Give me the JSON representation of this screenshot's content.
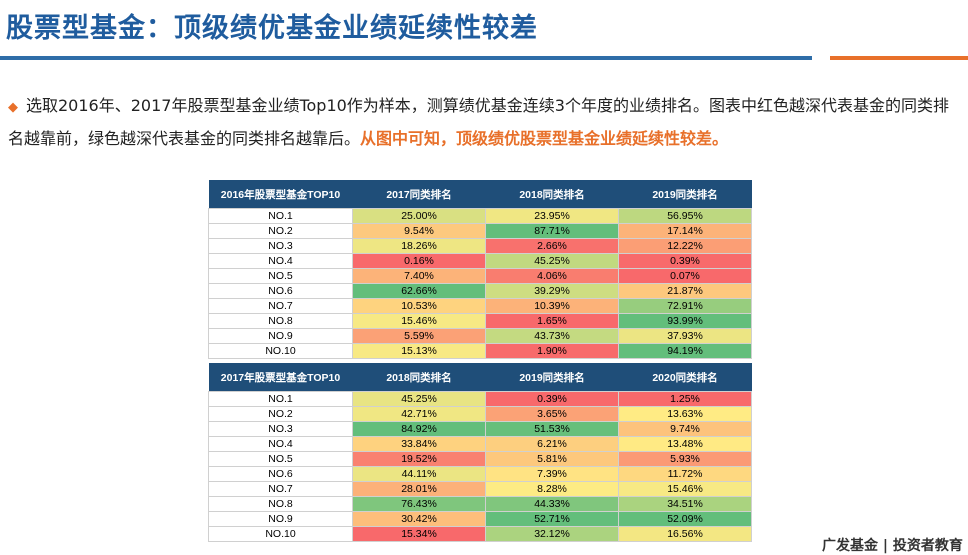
{
  "header": {
    "title": "股票型基金：顶级绩优基金业绩延续性较差"
  },
  "intro": {
    "text": "选取2016年、2017年股票型基金业绩Top10作为样本，测算绩优基金连续3个年度的业绩排名。图表中红色越深代表基金的同类排名越靠前，绿色越深代表基金的同类排名越靠后。",
    "highlight": "从图中可知，顶级绩优股票型基金业绩延续性较差。"
  },
  "tables": [
    {
      "columns": [
        "2016年股票型基金TOP10",
        "2017同类排名",
        "2018同类排名",
        "2019同类排名"
      ],
      "rows": [
        [
          "NO.1",
          "25.00%",
          "23.95%",
          "56.95%"
        ],
        [
          "NO.2",
          "9.54%",
          "87.71%",
          "17.14%"
        ],
        [
          "NO.3",
          "18.26%",
          "2.66%",
          "12.22%"
        ],
        [
          "NO.4",
          "0.16%",
          "45.25%",
          "0.39%"
        ],
        [
          "NO.5",
          "7.40%",
          "4.06%",
          "0.07%"
        ],
        [
          "NO.6",
          "62.66%",
          "39.29%",
          "21.87%"
        ],
        [
          "NO.7",
          "10.53%",
          "10.39%",
          "72.91%"
        ],
        [
          "NO.8",
          "15.46%",
          "1.65%",
          "93.99%"
        ],
        [
          "NO.9",
          "5.59%",
          "43.73%",
          "37.93%"
        ],
        [
          "NO.10",
          "15.13%",
          "1.90%",
          "94.19%"
        ]
      ]
    },
    {
      "columns": [
        "2017年股票型基金TOP10",
        "2018同类排名",
        "2019同类排名",
        "2020同类排名"
      ],
      "rows": [
        [
          "NO.1",
          "45.25%",
          "0.39%",
          "1.25%"
        ],
        [
          "NO.2",
          "42.71%",
          "3.65%",
          "13.63%"
        ],
        [
          "NO.3",
          "84.92%",
          "51.53%",
          "9.74%"
        ],
        [
          "NO.4",
          "33.84%",
          "6.21%",
          "13.48%"
        ],
        [
          "NO.5",
          "19.52%",
          "5.81%",
          "5.93%"
        ],
        [
          "NO.6",
          "44.11%",
          "7.39%",
          "11.72%"
        ],
        [
          "NO.7",
          "28.01%",
          "8.28%",
          "15.46%"
        ],
        [
          "NO.8",
          "76.43%",
          "44.33%",
          "34.51%"
        ],
        [
          "NO.9",
          "30.42%",
          "52.71%",
          "52.09%"
        ],
        [
          "NO.10",
          "15.34%",
          "32.12%",
          "16.56%"
        ]
      ]
    }
  ],
  "footer": {
    "logo": "广发基金 | 投资者教育"
  }
}
